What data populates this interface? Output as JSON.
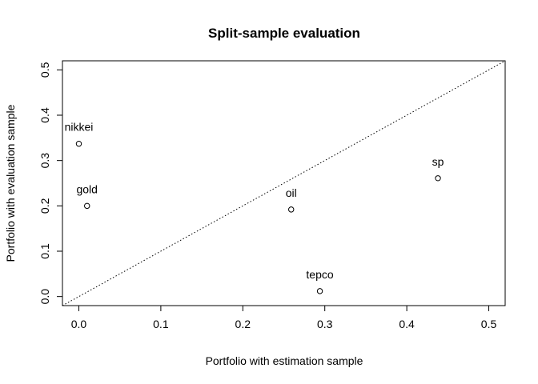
{
  "chart_data": {
    "type": "scatter",
    "title": "Split-sample evaluation",
    "xlabel": "Portfolio with estimation sample",
    "ylabel": "Portfolio with evaluation sample",
    "xlim": [
      -0.02,
      0.52
    ],
    "ylim": [
      -0.02,
      0.52
    ],
    "x_ticks": [
      "0.0",
      "0.1",
      "0.2",
      "0.3",
      "0.4",
      "0.5"
    ],
    "y_ticks": [
      "0.0",
      "0.1",
      "0.2",
      "0.3",
      "0.4",
      "0.5"
    ],
    "points": [
      {
        "label": "nikkei",
        "x": 0.0,
        "y": 0.337
      },
      {
        "label": "gold",
        "x": 0.01,
        "y": 0.2
      },
      {
        "label": "oil",
        "x": 0.259,
        "y": 0.192
      },
      {
        "label": "tepco",
        "x": 0.294,
        "y": 0.012
      },
      {
        "label": "sp",
        "x": 0.438,
        "y": 0.261
      }
    ],
    "reference_line": "dotted y = x",
    "grid": false,
    "legend": "none"
  }
}
